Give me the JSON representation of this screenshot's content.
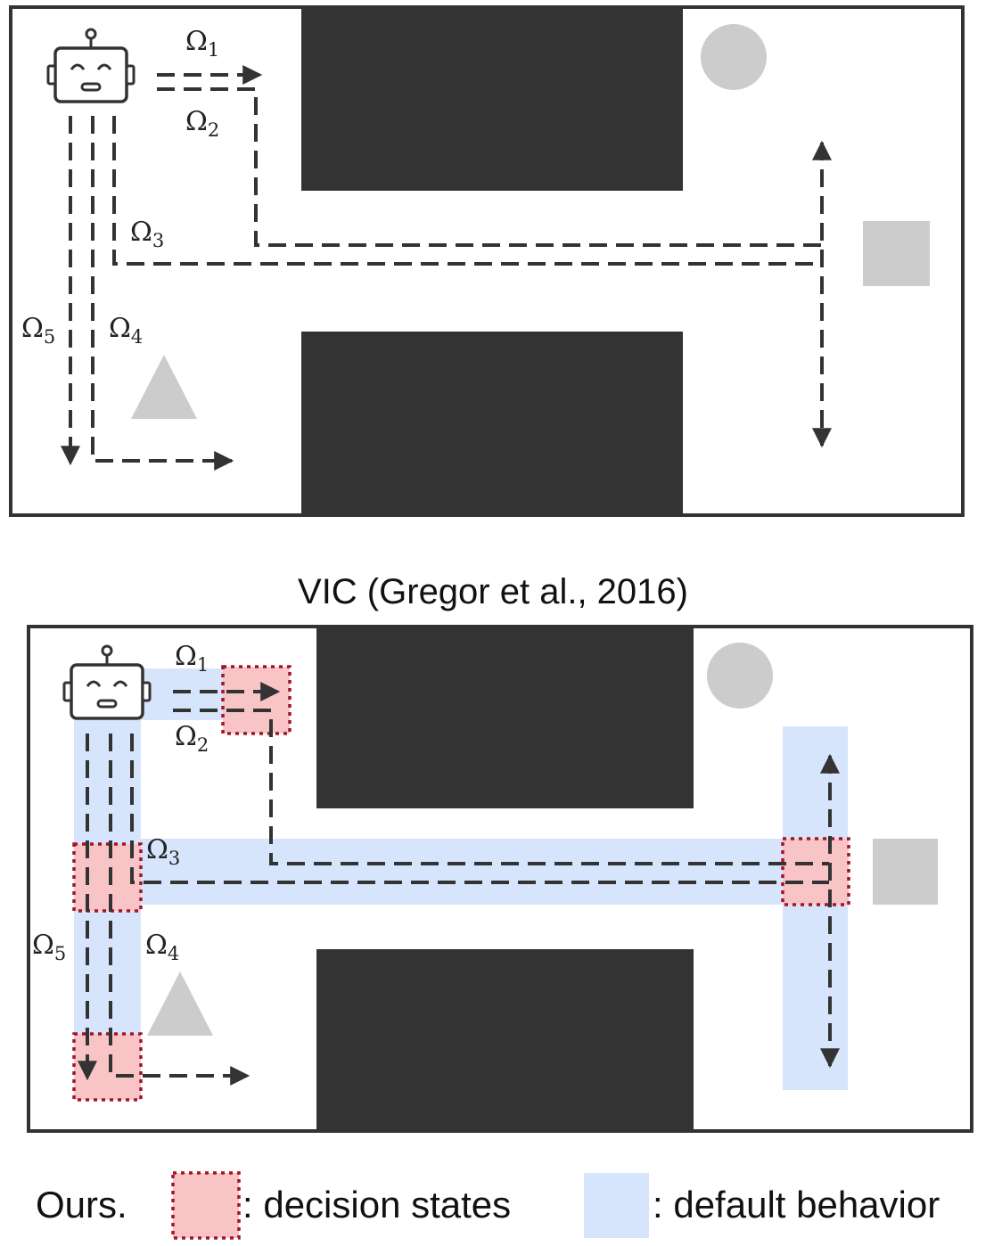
{
  "top_panel": {
    "option_labels": [
      {
        "symbol": "Ω",
        "sub": "1"
      },
      {
        "symbol": "Ω",
        "sub": "2"
      },
      {
        "symbol": "Ω",
        "sub": "3"
      },
      {
        "symbol": "Ω",
        "sub": "4"
      },
      {
        "symbol": "Ω",
        "sub": "5"
      }
    ]
  },
  "caption": "VIC (Gregor et al., 2016)",
  "bottom_panel": {
    "option_labels": [
      {
        "symbol": "Ω",
        "sub": "1"
      },
      {
        "symbol": "Ω",
        "sub": "2"
      },
      {
        "symbol": "Ω",
        "sub": "3"
      },
      {
        "symbol": "Ω",
        "sub": "4"
      },
      {
        "symbol": "Ω",
        "sub": "5"
      }
    ]
  },
  "legend": {
    "ours_label": "Ours.",
    "decision_states_label": ": decision states",
    "default_behavior_label": ": default behavior"
  },
  "colors": {
    "wall": "#333333",
    "frame": "#333333",
    "path": "#333333",
    "object_gray": "#cccccc",
    "decision_fill": "#f9c4c6",
    "decision_border": "#a1152a",
    "default_fill": "#d6e5fb"
  },
  "icons": [
    "robot-icon",
    "circle-object",
    "square-object",
    "triangle-object"
  ]
}
